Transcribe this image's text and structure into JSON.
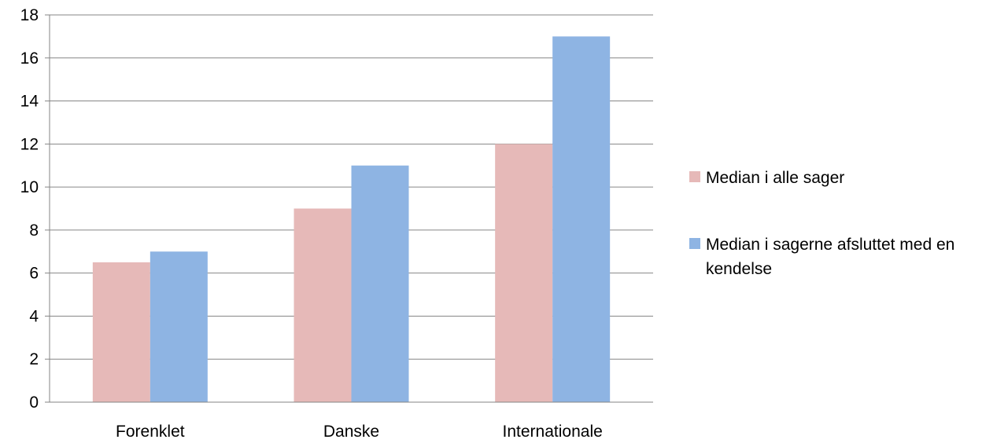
{
  "chart_data": {
    "type": "bar",
    "title": "",
    "xlabel": "",
    "ylabel": "",
    "categories": [
      "Forenklet",
      "Danske",
      "Internationale"
    ],
    "series": [
      {
        "name": "Median i alle sager",
        "values": [
          6.5,
          9,
          12
        ],
        "color": "#e6b9b8"
      },
      {
        "name": "Median i sagerne afsluttet med en kendelse",
        "values": [
          7,
          11,
          17
        ],
        "color": "#8eb4e3"
      }
    ],
    "ylim": [
      0,
      18
    ],
    "yticks": [
      0,
      2,
      4,
      6,
      8,
      10,
      12,
      14,
      16,
      18
    ],
    "grid": true,
    "legend_position": "right"
  },
  "legend": {
    "series1_label": "Median i alle sager",
    "series2_label_line1": "Median i sagerne afsluttet med en",
    "series2_label_line2": "kendelse"
  }
}
